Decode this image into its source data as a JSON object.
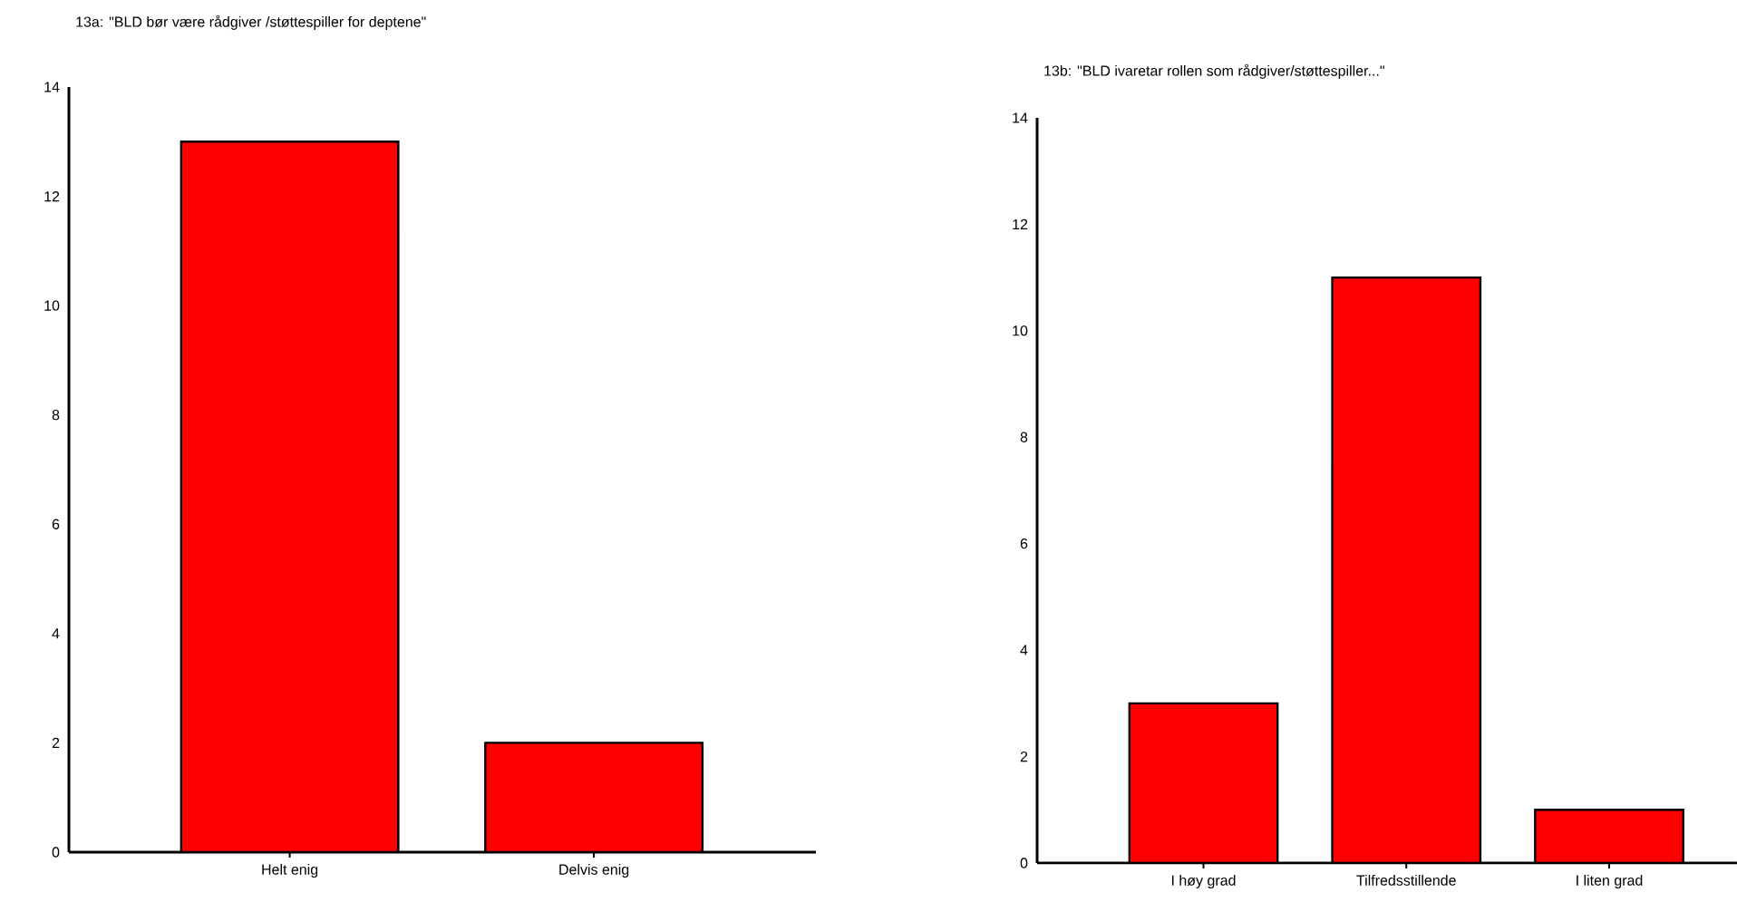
{
  "chart_data": [
    {
      "type": "bar",
      "title": "13a: \"BLD bør være rådgiver /støttespiller for deptene\"",
      "categories": [
        "Helt enig",
        "Delvis enig"
      ],
      "values": [
        13,
        2
      ],
      "color": "#ff0000",
      "ylim": [
        0,
        14
      ],
      "yticks": [
        0,
        2,
        4,
        6,
        8,
        10,
        12,
        14
      ]
    },
    {
      "type": "bar",
      "title": "13b: \"BLD ivaretar rollen som rådgiver/støttespiller...\"",
      "categories": [
        "I høy grad",
        "Tilfredsstillende",
        "I liten grad"
      ],
      "values": [
        3,
        11,
        1
      ],
      "color": "#ff0000",
      "ylim": [
        0,
        14
      ],
      "yticks": [
        0,
        2,
        4,
        6,
        8,
        10,
        12,
        14
      ]
    }
  ]
}
